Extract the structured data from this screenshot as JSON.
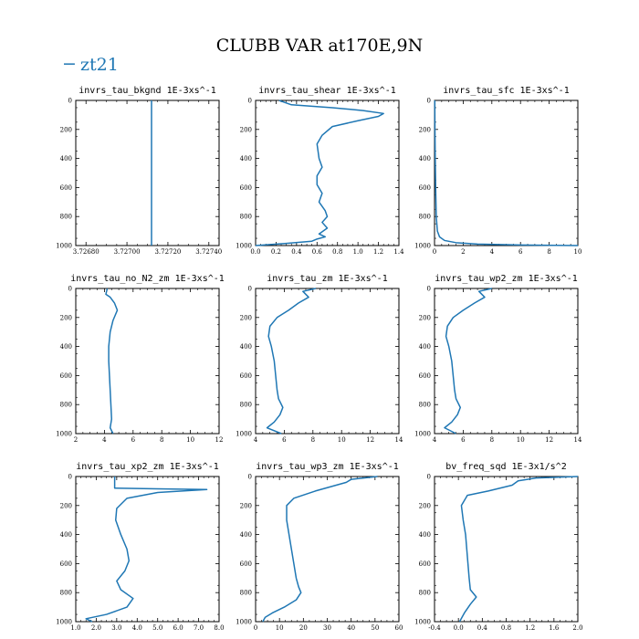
{
  "title": "CLUBB VAR at170E,9N",
  "legend": {
    "label": "zt21",
    "symbol": "−",
    "color": "#1f77b4"
  },
  "line_color": "#1f77b4",
  "chart_data": [
    {
      "type": "line",
      "title": "invrs_tau_bkgnd   1E-3xs^-1",
      "xlim": [
        3.72675,
        3.72745
      ],
      "ylim": [
        1000,
        0
      ],
      "xticks": [
        "3.72680",
        "3.72700",
        "3.72720",
        "3.72740"
      ],
      "xtick_values": [
        3.7268,
        3.727,
        3.7272,
        3.7274
      ],
      "yticks": [
        "0",
        "200",
        "400",
        "600",
        "800",
        "1000"
      ],
      "series": [
        {
          "x": [
            3.72712,
            3.72712
          ],
          "y": [
            0,
            1000
          ]
        }
      ]
    },
    {
      "type": "line",
      "title": "invrs_tau_shear   1E-3xs^-1",
      "xlim": [
        0,
        1.4
      ],
      "ylim": [
        1000,
        0
      ],
      "xticks": [
        "0.0",
        "0.2",
        "0.4",
        "0.6",
        "0.8",
        "1.0",
        "1.2",
        "1.4"
      ],
      "xtick_values": [
        0,
        0.2,
        0.4,
        0.6,
        0.8,
        1.0,
        1.2,
        1.4
      ],
      "yticks": [
        "0",
        "200",
        "400",
        "600",
        "800",
        "1000"
      ],
      "series": [
        {
          "x": [
            0.23,
            0.35,
            0.75,
            1.05,
            1.25,
            1.2,
            1.0,
            0.75,
            0.65,
            0.6,
            0.62,
            0.65,
            0.6,
            0.6,
            0.65,
            0.62,
            0.68,
            0.7,
            0.65,
            0.7,
            0.62,
            0.68,
            0.6,
            0.55,
            0.3,
            0.0
          ],
          "y": [
            0,
            30,
            50,
            70,
            90,
            110,
            140,
            180,
            240,
            300,
            400,
            460,
            520,
            580,
            640,
            700,
            760,
            800,
            840,
            880,
            920,
            940,
            955,
            970,
            985,
            1000
          ]
        }
      ]
    },
    {
      "type": "line",
      "title": "invrs_tau_sfc   1E-3xs^-1",
      "xlim": [
        0,
        10
      ],
      "ylim": [
        1000,
        0
      ],
      "xticks": [
        "0",
        "2",
        "4",
        "6",
        "8",
        "10"
      ],
      "xtick_values": [
        0,
        2,
        4,
        6,
        8,
        10
      ],
      "yticks": [
        "0",
        "200",
        "400",
        "600",
        "800",
        "1000"
      ],
      "series": [
        {
          "x": [
            0.02,
            0.03,
            0.05,
            0.08,
            0.12,
            0.2,
            0.35,
            0.7,
            1.5,
            3.0,
            6.0,
            10.0
          ],
          "y": [
            0,
            200,
            400,
            600,
            800,
            900,
            940,
            965,
            980,
            990,
            996,
            1000
          ]
        }
      ]
    },
    {
      "type": "line",
      "title": "invrs_tau_no_N2_zm   1E-3xs^-1",
      "xlim": [
        2,
        12
      ],
      "ylim": [
        1000,
        0
      ],
      "xticks": [
        "2",
        "4",
        "6",
        "8",
        "10",
        "12"
      ],
      "xtick_values": [
        2,
        4,
        6,
        8,
        10,
        12
      ],
      "yticks": [
        "0",
        "200",
        "400",
        "600",
        "800",
        "1000"
      ],
      "series": [
        {
          "x": [
            4.2,
            4.1,
            4.4,
            4.7,
            4.9,
            4.6,
            4.4,
            4.3,
            4.3,
            4.35,
            4.4,
            4.45,
            4.5,
            4.4,
            4.6
          ],
          "y": [
            0,
            40,
            60,
            100,
            150,
            220,
            300,
            400,
            500,
            600,
            700,
            800,
            900,
            960,
            1000
          ]
        }
      ]
    },
    {
      "type": "line",
      "title": "invrs_tau_zm   1E-3xs^-1",
      "xlim": [
        4,
        14
      ],
      "ylim": [
        1000,
        0
      ],
      "xticks": [
        "4",
        "6",
        "8",
        "10",
        "12",
        "14"
      ],
      "xtick_values": [
        4,
        6,
        8,
        10,
        12,
        14
      ],
      "yticks": [
        "0",
        "200",
        "400",
        "600",
        "800",
        "1000"
      ],
      "series": [
        {
          "x": [
            8.2,
            7.3,
            7.7,
            7.0,
            6.3,
            5.5,
            5.0,
            4.9,
            5.1,
            5.3,
            5.4,
            5.5,
            5.6,
            5.9,
            5.7,
            5.3,
            4.8,
            5.8
          ],
          "y": [
            0,
            20,
            60,
            100,
            150,
            200,
            260,
            330,
            400,
            500,
            600,
            700,
            760,
            820,
            870,
            920,
            960,
            1000
          ]
        }
      ]
    },
    {
      "type": "line",
      "title": "invrs_tau_wp2_zm   1E-3xs^-1",
      "xlim": [
        4,
        14
      ],
      "ylim": [
        1000,
        0
      ],
      "xticks": [
        "4",
        "6",
        "8",
        "10",
        "12",
        "14"
      ],
      "xtick_values": [
        4,
        6,
        8,
        10,
        12,
        14
      ],
      "yticks": [
        "0",
        "200",
        "400",
        "600",
        "800",
        "1000"
      ],
      "series": [
        {
          "x": [
            8.0,
            7.1,
            7.5,
            6.8,
            6.0,
            5.3,
            4.9,
            4.8,
            5.0,
            5.2,
            5.3,
            5.4,
            5.5,
            5.8,
            5.6,
            5.2,
            4.7,
            5.5
          ],
          "y": [
            0,
            20,
            60,
            100,
            150,
            200,
            260,
            330,
            400,
            500,
            600,
            700,
            760,
            820,
            870,
            920,
            960,
            1000
          ]
        }
      ]
    },
    {
      "type": "line",
      "title": "invrs_tau_xp2_zm   1E-3xs^-1",
      "xlim": [
        1,
        8
      ],
      "ylim": [
        1000,
        0
      ],
      "xticks": [
        "1.0",
        "2.0",
        "3.0",
        "4.0",
        "5.0",
        "6.0",
        "7.0",
        "8.0"
      ],
      "xtick_values": [
        1,
        2,
        3,
        4,
        5,
        6,
        7,
        8
      ],
      "yticks": [
        "0",
        "200",
        "400",
        "600",
        "800",
        "1000"
      ],
      "series": [
        {
          "x": [
            2.9,
            2.9,
            5.0,
            7.4,
            5.0,
            3.5,
            3.0,
            2.95,
            3.2,
            3.5,
            3.6,
            3.4,
            3.0,
            3.2,
            3.8,
            3.5,
            2.5,
            1.5,
            1.8
          ],
          "y": [
            0,
            80,
            85,
            90,
            110,
            150,
            220,
            300,
            400,
            500,
            580,
            650,
            720,
            780,
            840,
            900,
            950,
            980,
            1000
          ]
        }
      ]
    },
    {
      "type": "line",
      "title": "invrs_tau_wp3_zm   1E-3xs^-1",
      "xlim": [
        0,
        60
      ],
      "ylim": [
        1000,
        0
      ],
      "xticks": [
        "0",
        "10",
        "20",
        "30",
        "40",
        "50",
        "60"
      ],
      "xtick_values": [
        0,
        10,
        20,
        30,
        40,
        50,
        60
      ],
      "yticks": [
        "0",
        "200",
        "400",
        "600",
        "800",
        "1000"
      ],
      "series": [
        {
          "x": [
            51,
            40,
            38,
            25,
            16,
            13,
            13,
            14,
            15,
            16,
            17,
            18,
            19,
            17,
            12,
            7,
            4,
            3
          ],
          "y": [
            0,
            20,
            40,
            100,
            150,
            200,
            300,
            400,
            500,
            600,
            700,
            760,
            800,
            850,
            900,
            940,
            970,
            1000
          ]
        }
      ]
    },
    {
      "type": "line",
      "title": "bv_freq_sqd   1E-3x1/s^2",
      "xlim": [
        -0.4,
        2.0
      ],
      "ylim": [
        1000,
        0
      ],
      "xticks": [
        "-0.4",
        "0.0",
        "0.4",
        "0.8",
        "1.2",
        "1.6",
        "2.0"
      ],
      "xtick_values": [
        -0.4,
        0,
        0.4,
        0.8,
        1.2,
        1.6,
        2.0
      ],
      "yticks": [
        "0",
        "200",
        "400",
        "600",
        "800",
        "1000"
      ],
      "series": [
        {
          "x": [
            2.0,
            1.3,
            1.0,
            0.9,
            0.5,
            0.15,
            0.05,
            0.08,
            0.12,
            0.14,
            0.16,
            0.18,
            0.2,
            0.3,
            0.2,
            0.1,
            0.02
          ],
          "y": [
            0,
            10,
            30,
            60,
            100,
            130,
            200,
            300,
            400,
            500,
            600,
            700,
            780,
            830,
            880,
            940,
            1000
          ]
        }
      ]
    }
  ]
}
